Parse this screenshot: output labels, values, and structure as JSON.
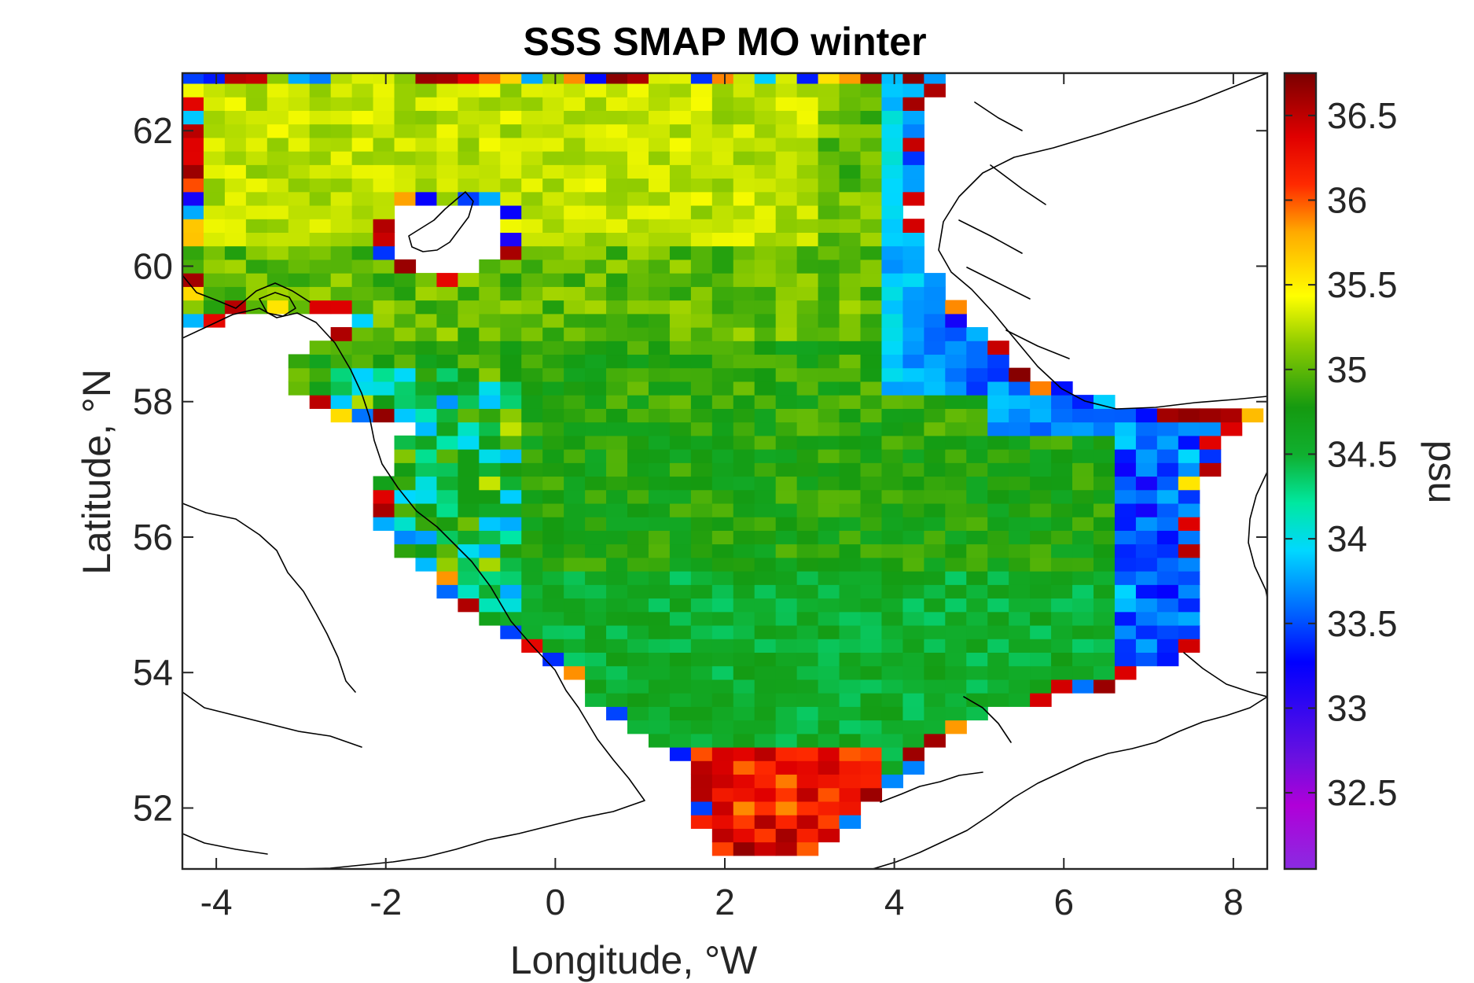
{
  "title": "SSS SMAP MO winter",
  "x_axis": {
    "label": "Longitude, °W",
    "ticks": [
      -4,
      -2,
      0,
      2,
      4,
      6,
      8
    ],
    "tick_labels": [
      "-4",
      "-2",
      "0",
      "2",
      "4",
      "6",
      "8"
    ],
    "range": [
      -4.4,
      8.4
    ]
  },
  "y_axis": {
    "label": "Latitude, °N",
    "ticks": [
      52,
      54,
      56,
      58,
      60,
      62
    ],
    "tick_labels": [
      "52",
      "54",
      "56",
      "58",
      "60",
      "62"
    ],
    "range": [
      51.1,
      62.85
    ]
  },
  "colorbar": {
    "label": "psu",
    "range": [
      32.05,
      36.75
    ],
    "ticks": [
      32.5,
      33,
      33.5,
      34,
      34.5,
      35,
      35.5,
      36,
      36.5
    ],
    "tick_labels": [
      "32.5",
      "33",
      "33.5",
      "34",
      "34.5",
      "35",
      "35.5",
      "36",
      "36.5"
    ],
    "colormap": "jet-like (violet-blue-cyan-green-yellow-red-darkred)"
  },
  "chart_data": {
    "type": "heatmap",
    "title": "SSS SMAP MO winter",
    "xlabel": "Longitude, °W",
    "ylabel": "Latitude, °N",
    "xlim": [
      -4.4,
      8.4
    ],
    "ylim": [
      51.1,
      62.85
    ],
    "clim": [
      32.05,
      36.75
    ],
    "units": "psu",
    "grid_resolution_deg": {
      "lon": 0.25,
      "lat": 0.2
    },
    "pattern": [
      {
        "region": "open ocean north of 60°N, west of 3°E",
        "approx_value": 35.2
      },
      {
        "region": "central North Sea",
        "approx_value": 34.75
      },
      {
        "region": "southern North Sea 53-55°N",
        "approx_value": 34.55
      },
      {
        "region": "Norwegian coastal current (4-5°E, 58-62°N)",
        "approx_value": 33.9
      },
      {
        "region": "Skagerrak / Danish coast",
        "approx_value": 33.5
      },
      {
        "region": "Dover Strait / southern bight",
        "approx_value": 36.2
      }
    ]
  }
}
